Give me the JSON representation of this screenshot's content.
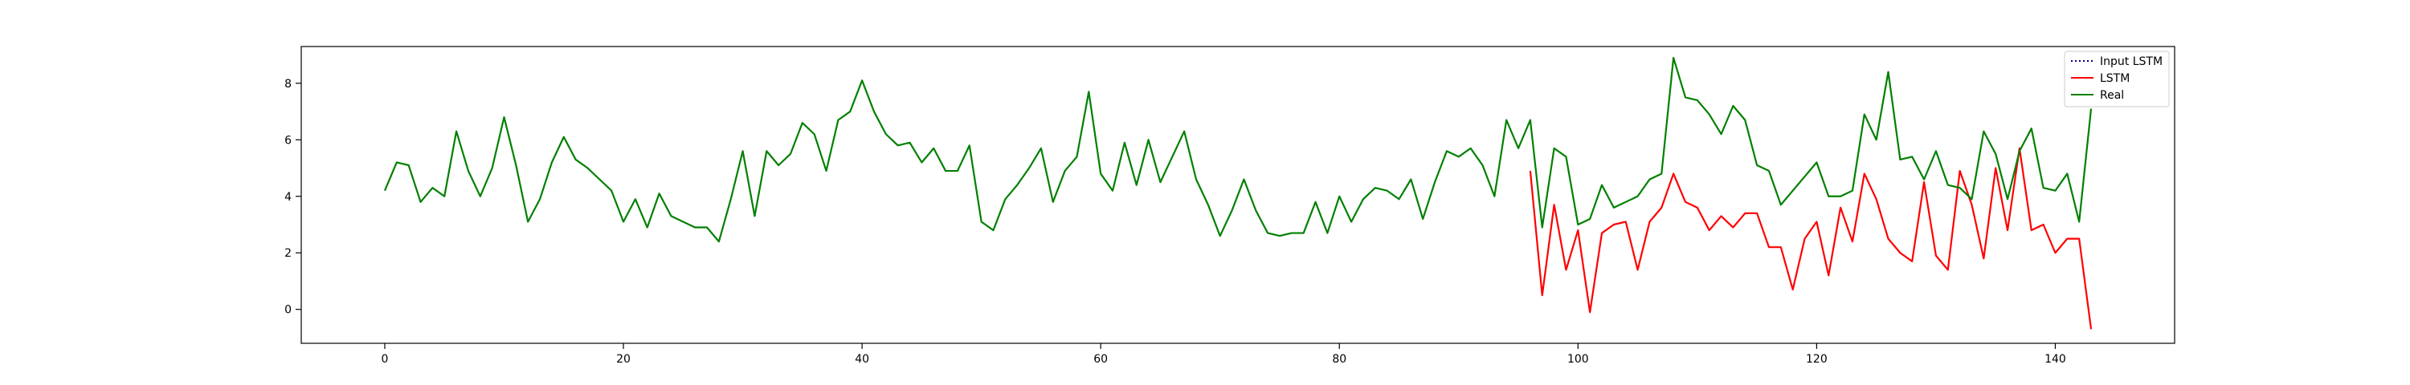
{
  "chart_data": {
    "type": "line",
    "xlim": [
      -7,
      150
    ],
    "ylim": [
      -1.2,
      9.3
    ],
    "xticks": [
      0,
      20,
      40,
      60,
      80,
      100,
      120,
      140
    ],
    "yticks": [
      0,
      2,
      4,
      6,
      8
    ],
    "grid": false,
    "legend_position": "top-right",
    "series": [
      {
        "name": "Input LSTM",
        "color": "#00008b",
        "style": "dotted",
        "x_start": 0,
        "values": []
      },
      {
        "name": "LSTM",
        "color": "#ff0000",
        "style": "solid",
        "x_start": 96,
        "values": [
          4.9,
          0.5,
          3.7,
          1.4,
          2.8,
          -0.1,
          2.7,
          3.0,
          3.1,
          1.4,
          3.1,
          3.6,
          4.8,
          3.8,
          3.6,
          2.8,
          3.3,
          2.9,
          3.4,
          3.4,
          2.2,
          2.2,
          0.7,
          2.5,
          3.1,
          1.2,
          3.6,
          2.4,
          4.8,
          3.9,
          2.5,
          2.0,
          1.7,
          4.5,
          1.9,
          1.4,
          4.9,
          3.7,
          1.8,
          5.0,
          2.8,
          5.7,
          2.8,
          3.0,
          2.0,
          2.5,
          2.5,
          -0.7
        ]
      },
      {
        "name": "Real",
        "color": "#008000",
        "style": "solid",
        "x_start": 0,
        "values": [
          4.2,
          5.2,
          5.1,
          3.8,
          4.3,
          4.0,
          6.3,
          4.9,
          4.0,
          5.0,
          6.8,
          5.1,
          3.1,
          3.9,
          5.2,
          6.1,
          5.3,
          5.0,
          4.6,
          4.2,
          3.1,
          3.9,
          2.9,
          4.1,
          3.3,
          3.1,
          2.9,
          2.9,
          2.4,
          3.9,
          5.6,
          3.3,
          5.6,
          5.1,
          5.5,
          6.6,
          6.2,
          4.9,
          6.7,
          7.0,
          8.1,
          7.0,
          6.2,
          5.8,
          5.9,
          5.2,
          5.7,
          4.9,
          4.9,
          5.8,
          3.1,
          2.8,
          3.9,
          4.4,
          5.0,
          5.7,
          3.8,
          4.9,
          5.4,
          7.7,
          4.8,
          4.2,
          5.9,
          4.4,
          6.0,
          4.5,
          5.4,
          6.3,
          4.6,
          3.7,
          2.6,
          3.5,
          4.6,
          3.5,
          2.7,
          2.6,
          2.7,
          2.7,
          3.8,
          2.7,
          4.0,
          3.1,
          3.9,
          4.3,
          4.2,
          3.9,
          4.6,
          3.2,
          4.5,
          5.6,
          5.4,
          5.7,
          5.1,
          4.0,
          6.7,
          5.7,
          6.7,
          2.9,
          5.7,
          5.4,
          3.0,
          3.2,
          4.4,
          3.6,
          3.8,
          4.0,
          4.6,
          4.8,
          8.9,
          7.5,
          7.4,
          6.9,
          6.2,
          7.2,
          6.7,
          5.1,
          4.9,
          3.7,
          4.2,
          4.7,
          5.2,
          4.0,
          4.0,
          4.2,
          6.9,
          6.0,
          8.4,
          5.3,
          5.4,
          4.6,
          5.6,
          4.4,
          4.3,
          3.9,
          6.3,
          5.5,
          3.9,
          5.6,
          6.4,
          4.3,
          4.2,
          4.8,
          3.1,
          7.1
        ]
      }
    ]
  }
}
